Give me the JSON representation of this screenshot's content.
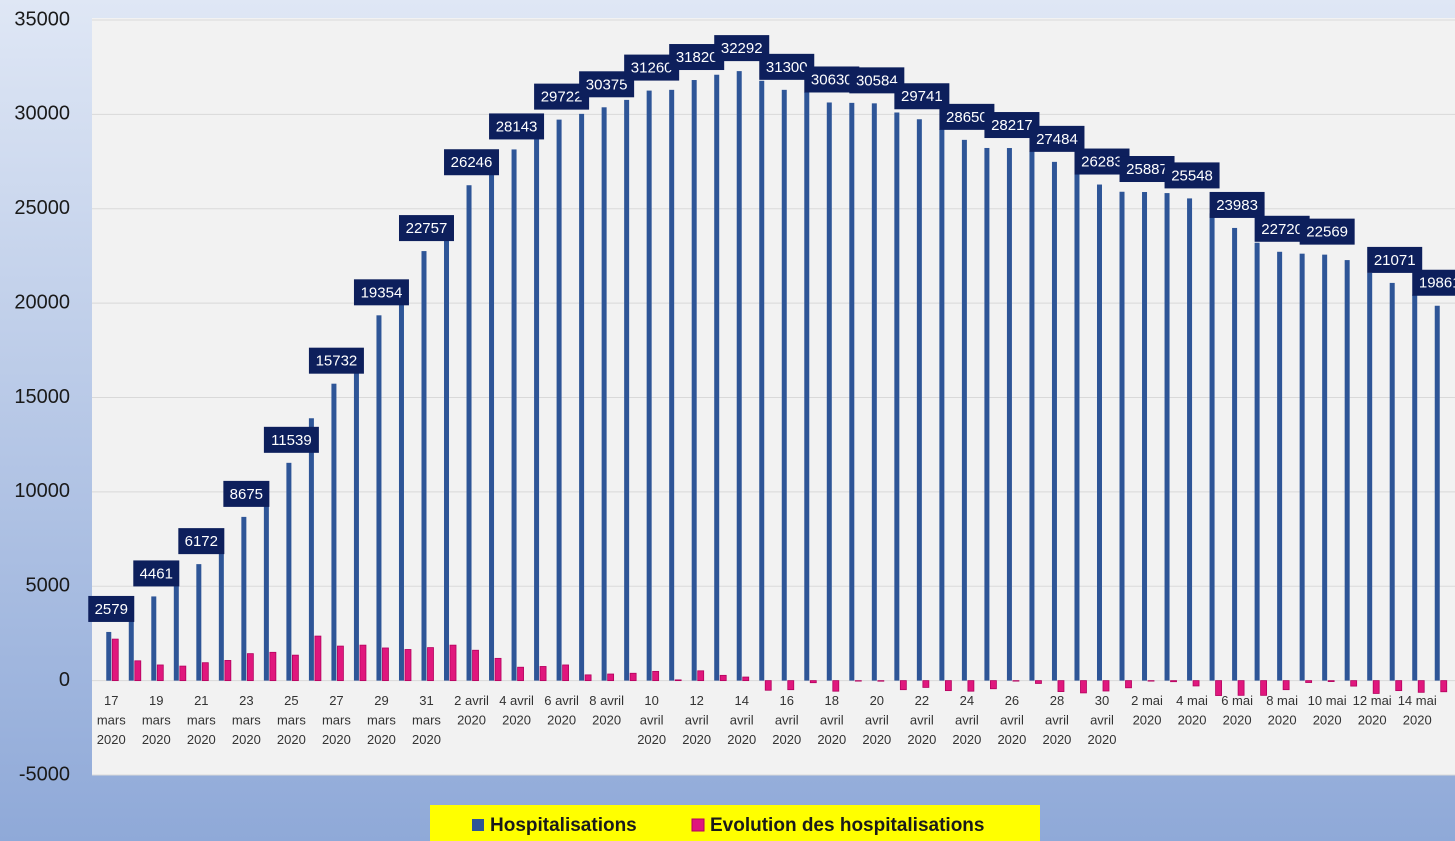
{
  "chart_data": {
    "type": "bar",
    "categories": [
      "17 mars 2020",
      null,
      "19 mars 2020",
      null,
      "21 mars 2020",
      null,
      "23 mars 2020",
      null,
      "25 mars 2020",
      null,
      "27 mars 2020",
      null,
      "29 mars 2020",
      null,
      "31 mars 2020",
      null,
      "2 avril 2020",
      null,
      "4 avril 2020",
      null,
      "6 avril 2020",
      null,
      "8 avril 2020",
      null,
      "10 avril 2020",
      null,
      "12 avril 2020",
      null,
      "14 avril 2020",
      null,
      "16 avril 2020",
      null,
      "18 avril 2020",
      null,
      "20 avril 2020",
      null,
      "22 avril 2020",
      null,
      "24 avril 2020",
      null,
      "26 avril 2020",
      null,
      "28 avril 2020",
      null,
      "30 avril 2020",
      null,
      "2 mai 2020",
      null,
      "4 mai 2020",
      null,
      "6 mai 2020",
      null,
      "8 mai 2020",
      null,
      "10 mai 2020",
      null,
      "12 mai 2020",
      null,
      "14 mai 2020",
      null
    ],
    "series": [
      {
        "name": "Hospitalisations",
        "color": "#2e5597",
        "values": [
          2579,
          3630,
          4461,
          5230,
          6172,
          7240,
          8675,
          10180,
          11539,
          13900,
          15732,
          17620,
          19354,
          21000,
          22757,
          24640,
          26246,
          27430,
          28143,
          28890,
          29722,
          30027,
          30375,
          30767,
          31260,
          31300,
          31820,
          32100,
          32292,
          31780,
          31300,
          31190,
          30630,
          30610,
          30584,
          30100,
          29741,
          29210,
          28650,
          28220,
          28217,
          28060,
          27484,
          26830,
          26283,
          25900,
          25887,
          25830,
          25548,
          24760,
          23983,
          23200,
          22720,
          22620,
          22569,
          22280,
          21600,
          21071,
          20450,
          19861
        ],
        "value_labels": [
          "2579",
          null,
          "4461",
          null,
          "6172",
          null,
          "8675",
          null,
          "11539",
          null,
          "15732",
          null,
          "19354",
          null,
          "22757",
          null,
          "26246",
          null,
          "28143",
          null,
          "29722",
          null,
          "30375",
          null,
          "31260",
          null,
          "31820",
          null,
          "32292",
          null,
          "31300",
          null,
          "30630",
          null,
          "30584",
          null,
          "29741",
          null,
          "28650",
          null,
          "28217",
          null,
          "27484",
          null,
          "26283",
          null,
          "25887",
          null,
          "25548",
          null,
          "23983",
          null,
          "22720",
          null,
          "22569",
          null,
          null,
          "21071",
          null,
          "19861"
        ]
      },
      {
        "name": "Evolution des hospitalisations",
        "color": "#e0177d",
        "values": [
          2200,
          1050,
          830,
          770,
          950,
          1070,
          1430,
          1500,
          1350,
          2360,
          1830,
          1880,
          1730,
          1650,
          1750,
          1880,
          1610,
          1180,
          710,
          750,
          830,
          305,
          350,
          390,
          490,
          40,
          520,
          280,
          190,
          -510,
          -480,
          -110,
          -560,
          -20,
          -30,
          -480,
          -360,
          -530,
          -560,
          -430,
          -3,
          -150,
          -580,
          -650,
          -550,
          -380,
          -13,
          -57,
          -282,
          -790,
          -780,
          -780,
          -480,
          -100,
          -50,
          -290,
          -680,
          -530,
          -620,
          -590
        ]
      }
    ],
    "ylim": [
      -5000,
      35000
    ],
    "yticks": [
      -5000,
      0,
      5000,
      10000,
      15000,
      20000,
      25000,
      30000,
      35000
    ],
    "grid": true,
    "legend": "bottom"
  }
}
